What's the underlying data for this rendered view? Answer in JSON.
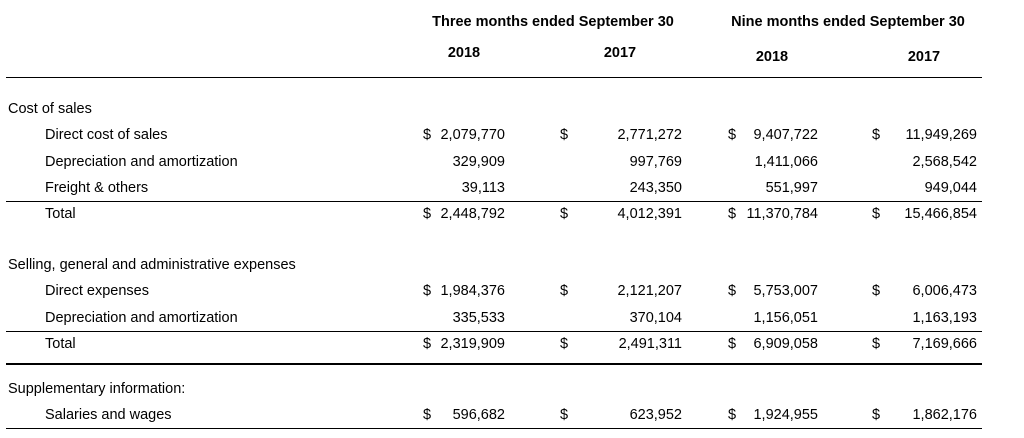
{
  "header": {
    "groups": [
      "Three months ended September 30",
      "Nine months ended September 30"
    ],
    "years": [
      "2018",
      "2017",
      "2018",
      "2017"
    ]
  },
  "sections": [
    {
      "title": "Cost of sales",
      "rows": [
        {
          "label": "Direct cost of sales",
          "cells": [
            {
              "currency": "$",
              "amount": "2,079,770"
            },
            {
              "currency": "$",
              "amount": "2,771,272"
            },
            {
              "currency": "$",
              "amount": "9,407,722"
            },
            {
              "currency": "$",
              "amount": "11,949,269"
            }
          ]
        },
        {
          "label": "Depreciation and amortization",
          "cells": [
            {
              "amount": "329,909"
            },
            {
              "amount": "997,769"
            },
            {
              "amount": "1,411,066"
            },
            {
              "amount": "2,568,542"
            }
          ]
        },
        {
          "label": "Freight & others",
          "cells": [
            {
              "amount": "39,113"
            },
            {
              "amount": "243,350"
            },
            {
              "amount": "551,997"
            },
            {
              "amount": "949,044"
            }
          ]
        },
        {
          "label": "Total",
          "cells": [
            {
              "currency": "$",
              "amount": "2,448,792"
            },
            {
              "currency": "$",
              "amount": "4,012,391"
            },
            {
              "currency": "$",
              "amount": "11,370,784"
            },
            {
              "currency": "$",
              "amount": "15,466,854"
            }
          ]
        }
      ]
    },
    {
      "title": "Selling, general and administrative expenses",
      "rows": [
        {
          "label": "Direct expenses",
          "cells": [
            {
              "currency": "$",
              "amount": "1,984,376"
            },
            {
              "currency": "$",
              "amount": "2,121,207"
            },
            {
              "currency": "$",
              "amount": "5,753,007"
            },
            {
              "currency": "$",
              "amount": "6,006,473"
            }
          ]
        },
        {
          "label": "Depreciation and amortization",
          "cells": [
            {
              "amount": "335,533"
            },
            {
              "amount": "370,104"
            },
            {
              "amount": "1,156,051"
            },
            {
              "amount": "1,163,193"
            }
          ]
        },
        {
          "label": "Total",
          "cells": [
            {
              "currency": "$",
              "amount": "2,319,909"
            },
            {
              "currency": "$",
              "amount": "2,491,311"
            },
            {
              "currency": "$",
              "amount": "6,909,058"
            },
            {
              "currency": "$",
              "amount": "7,169,666"
            }
          ]
        }
      ]
    },
    {
      "title": "Supplementary information:",
      "rows": [
        {
          "label": "Salaries and wages",
          "cells": [
            {
              "currency": "$",
              "amount": "596,682"
            },
            {
              "currency": "$",
              "amount": "623,952"
            },
            {
              "currency": "$",
              "amount": "1,924,955"
            },
            {
              "currency": "$",
              "amount": "1,862,176"
            }
          ]
        }
      ]
    }
  ]
}
